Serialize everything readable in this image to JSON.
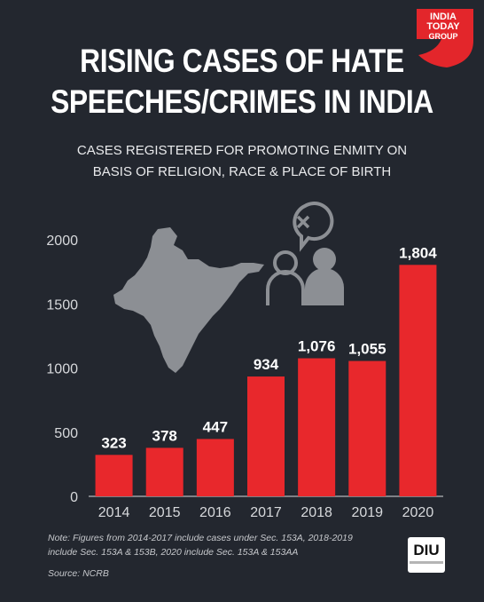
{
  "header": {
    "title_line1": "RISING CASES OF HATE",
    "title_line2": "SPEECHES/CRIMES IN INDIA",
    "subtitle_line1": "CASES REGISTERED FOR PROMOTING ENMITY ON",
    "subtitle_line2": "BASIS OF RELIGION, RACE & PLACE OF BIRTH"
  },
  "logo": {
    "line1": "INDIA",
    "line2": "TODAY",
    "line3": "GROUP",
    "color": "#e3262b"
  },
  "chart_data": {
    "type": "bar",
    "categories": [
      "2014",
      "2015",
      "2016",
      "2017",
      "2018",
      "2019",
      "2020"
    ],
    "values": [
      323,
      378,
      447,
      934,
      1076,
      1055,
      1804
    ],
    "value_labels": [
      "323",
      "378",
      "447",
      "934",
      "1,076",
      "1,055",
      "1,804"
    ],
    "ylim": [
      0,
      2000
    ],
    "yticks": [
      0,
      500,
      1000,
      1500,
      2000
    ],
    "ytick_labels": [
      "0",
      "500",
      "1000",
      "1500",
      "2000"
    ],
    "bar_color": "#e8282c",
    "grid": false
  },
  "footer": {
    "note_line1": "Note: Figures from 2014-2017 include cases under Sec. 153A, 2018-2019",
    "note_line2": "include Sec. 153A & 153B, 2020 include Sec. 153A & 153AA",
    "source": "Source: NCRB",
    "diu_label": "DIU"
  },
  "colors": {
    "background": "#23272f",
    "axis": "#d7d9dc",
    "icon_gray": "#8c8f94"
  }
}
